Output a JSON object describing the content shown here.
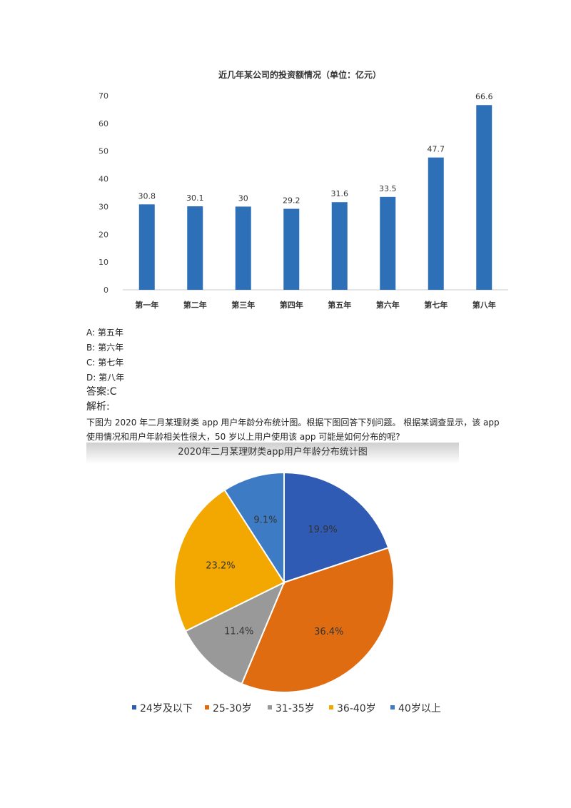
{
  "options": [
    {
      "letter": "A:",
      "text": "第五年"
    },
    {
      "letter": "B:",
      "text": "第六年"
    },
    {
      "letter": "C:",
      "text": "第七年"
    },
    {
      "letter": "D:",
      "text": "第八年"
    }
  ],
  "answer": "答案:C",
  "analysis_label": "解析:",
  "analysis_text": "下图为 2020 年二月某理财类 app 用户年龄分布统计图。根据下图回答下列问题。 根据某调查显示，该 app 使用情况和用户年龄相关性很大，50 岁以上用户使用该 app 可能是如何分布的呢?",
  "colors": {
    "bar": "#2e70b8",
    "pie": [
      "#2f5bb5",
      "#e06c12",
      "#999999",
      "#f2a800",
      "#3d7cc4"
    ]
  },
  "chart_data": [
    {
      "type": "bar",
      "title": "近几年某公司的投资额情况（单位：亿元）",
      "categories": [
        "第一年",
        "第二年",
        "第三年",
        "第四年",
        "第五年",
        "第六年",
        "第七年",
        "第八年"
      ],
      "values": [
        30.8,
        30.1,
        30,
        29.2,
        31.6,
        33.5,
        47.7,
        66.6
      ],
      "value_labels": [
        "30.8",
        "30.1",
        "30",
        "29.2",
        "31.6",
        "33.5",
        "47.7",
        "66.6"
      ],
      "y_ticks": [
        "0",
        "10",
        "20",
        "30",
        "40",
        "50",
        "60",
        "70"
      ],
      "ylim": [
        0,
        70
      ],
      "grid": false
    },
    {
      "type": "pie",
      "title": "2020年二月某理财类app用户年龄分布统计图",
      "categories": [
        "24岁及以下",
        "25-30岁",
        "31-35岁",
        "36-40岁",
        "40岁以上"
      ],
      "values": [
        19.9,
        36.4,
        11.4,
        23.2,
        9.1
      ],
      "value_labels": [
        "19.9%",
        "36.4%",
        "11.4%",
        "23.2%",
        "9.1%"
      ],
      "legend_position": "bottom"
    }
  ]
}
